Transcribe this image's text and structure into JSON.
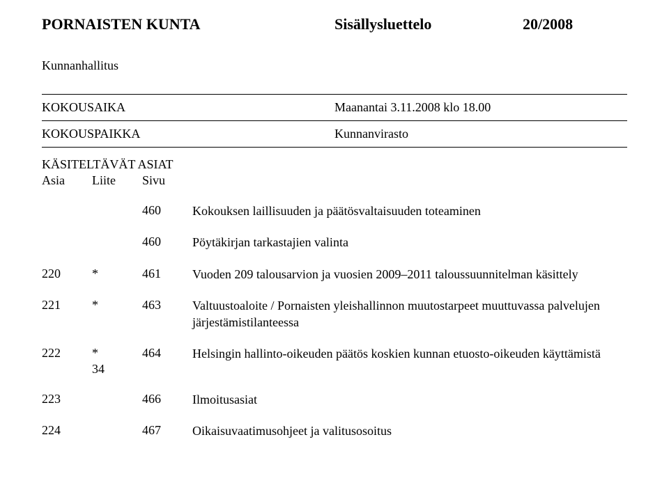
{
  "header": {
    "org": "PORNAISTEN KUNTA",
    "center": "Sisällysluettelo",
    "right": "20/2008"
  },
  "subheader": "Kunnanhallitus",
  "meeting": {
    "time_label": "KOKOUSAIKA",
    "time_value": "Maanantai 3.11.2008 klo 18.00",
    "place_label": "KOKOUSPAIKKA",
    "place_value": "Kunnanvirasto"
  },
  "asiat_header": "KÄSITELTÄVÄT ASIAT",
  "cols": {
    "asia": "Asia",
    "liite": "Liite",
    "sivu": "Sivu"
  },
  "rows": [
    {
      "asia": "",
      "liite": "",
      "liite2": "",
      "sivu": "460",
      "desc": "Kokouksen laillisuuden ja päätösvaltaisuuden toteaminen"
    },
    {
      "asia": "",
      "liite": "",
      "liite2": "",
      "sivu": "460",
      "desc": "Pöytäkirjan tarkastajien valinta"
    },
    {
      "asia": "220",
      "liite": "*",
      "liite2": "",
      "sivu": "461",
      "desc": "Vuoden 209 talousarvion ja vuosien 2009–2011 taloussuunnitelman käsittely"
    },
    {
      "asia": "221",
      "liite": "*",
      "liite2": "",
      "sivu": "463",
      "desc": "Valtuustoaloite / Pornaisten yleishallinnon muutostarpeet muuttuvassa palvelujen järjestämistilanteessa"
    },
    {
      "asia": "222",
      "liite": "*",
      "liite2": "34",
      "sivu": "464",
      "desc": "Helsingin hallinto-oikeuden päätös koskien kunnan etuosto-oikeuden käyttämistä"
    },
    {
      "asia": "223",
      "liite": "",
      "liite2": "",
      "sivu": "466",
      "desc": "Ilmoitusasiat"
    },
    {
      "asia": "224",
      "liite": "",
      "liite2": "",
      "sivu": "467",
      "desc": "Oikaisuvaatimusohjeet ja valitusosoitus"
    }
  ]
}
